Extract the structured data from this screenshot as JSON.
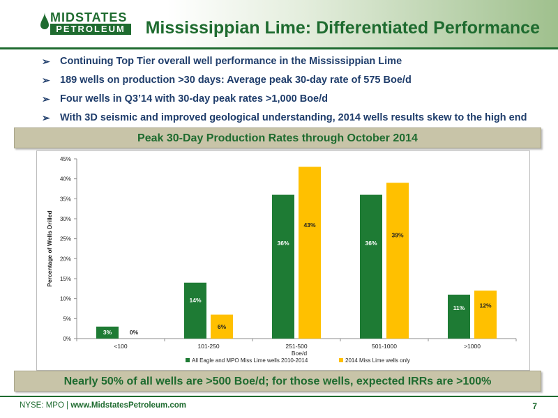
{
  "header": {
    "logo_top": "MIDSTATES",
    "logo_bottom": "PETROLEUM",
    "title": "Mississippian Lime: Differentiated Performance"
  },
  "bullets": [
    "Continuing Top Tier overall well performance in the Mississippian Lime",
    "189 wells on production >30 days: Average peak 30-day rate of 575 Boe/d",
    "Four wells in Q3’14 with 30-day peak rates >1,000 Boe/d",
    "With 3D seismic and improved geological understanding, 2014 wells results skew to the high end"
  ],
  "banner_top": "Peak 30-Day Production Rates through October 2014",
  "banner_bottom": "Nearly 50% of all wells are >500 Boe/d; for those wells, expected IRRs are >100%",
  "footer": {
    "ticker": "NYSE: MPO",
    "separator": "|",
    "website": "www.MidstatesPetroleum.com",
    "page_number": "7"
  },
  "colors": {
    "brand_green": "#1e6b2f",
    "series_green": "#1e7b34",
    "series_yellow": "#ffc000",
    "banner": "#c8c4a8",
    "bullet_text": "#1f3d6b"
  },
  "chart_data": {
    "type": "bar",
    "categories": [
      "<100",
      "101-250",
      "251-500",
      "501-1000",
      ">1000"
    ],
    "series": [
      {
        "name": "All Eagle and MPO Miss Lime wells 2010-2014",
        "color": "#1e7b34",
        "values": [
          3,
          14,
          36,
          36,
          11
        ],
        "labels": [
          "3%",
          "14%",
          "36%",
          "36%",
          "11%"
        ]
      },
      {
        "name": "2014 Miss Lime wells only",
        "color": "#ffc000",
        "values": [
          0,
          6,
          43,
          39,
          12
        ],
        "labels": [
          "0%",
          "6%",
          "43%",
          "39%",
          "12%"
        ]
      }
    ],
    "xlabel": "Boe/d",
    "ylabel": "Percentage of Wells Drilled",
    "ylim": [
      0,
      45
    ],
    "yticks": [
      "0%",
      "5%",
      "10%",
      "15%",
      "20%",
      "25%",
      "30%",
      "35%",
      "40%",
      "45%"
    ],
    "grid": false,
    "legend": "bottom"
  }
}
